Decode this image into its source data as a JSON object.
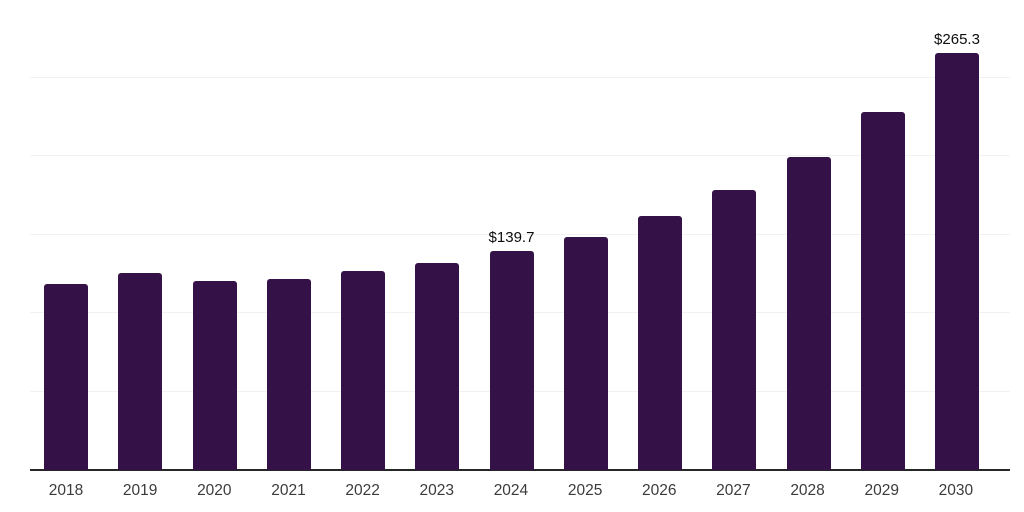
{
  "chart_data": {
    "type": "bar",
    "title": "",
    "xlabel": "",
    "ylabel": "",
    "categories": [
      "2018",
      "2019",
      "2020",
      "2021",
      "2022",
      "2023",
      "2024",
      "2025",
      "2026",
      "2027",
      "2028",
      "2029",
      "2030"
    ],
    "values": [
      118.3,
      125.5,
      120.2,
      121.9,
      126.5,
      132.1,
      139.7,
      148.6,
      161.9,
      178.4,
      199.2,
      227.9,
      265.3
    ],
    "data_labels": [
      {
        "category": "2024",
        "text": "$139.7"
      },
      {
        "category": "2030",
        "text": "$265.3"
      }
    ],
    "ylim": [
      0,
      300
    ],
    "grid_step": 50,
    "grid": "horizontal-only",
    "legend": "none",
    "y_axis_labels_visible": false,
    "colors": {
      "bar": "#341147",
      "axis_line": "#262626",
      "gridline": "#f2f1f3",
      "x_tick_label": "#3b3b3b",
      "data_label": "#0d0d0d",
      "background": "#ffffff"
    }
  }
}
